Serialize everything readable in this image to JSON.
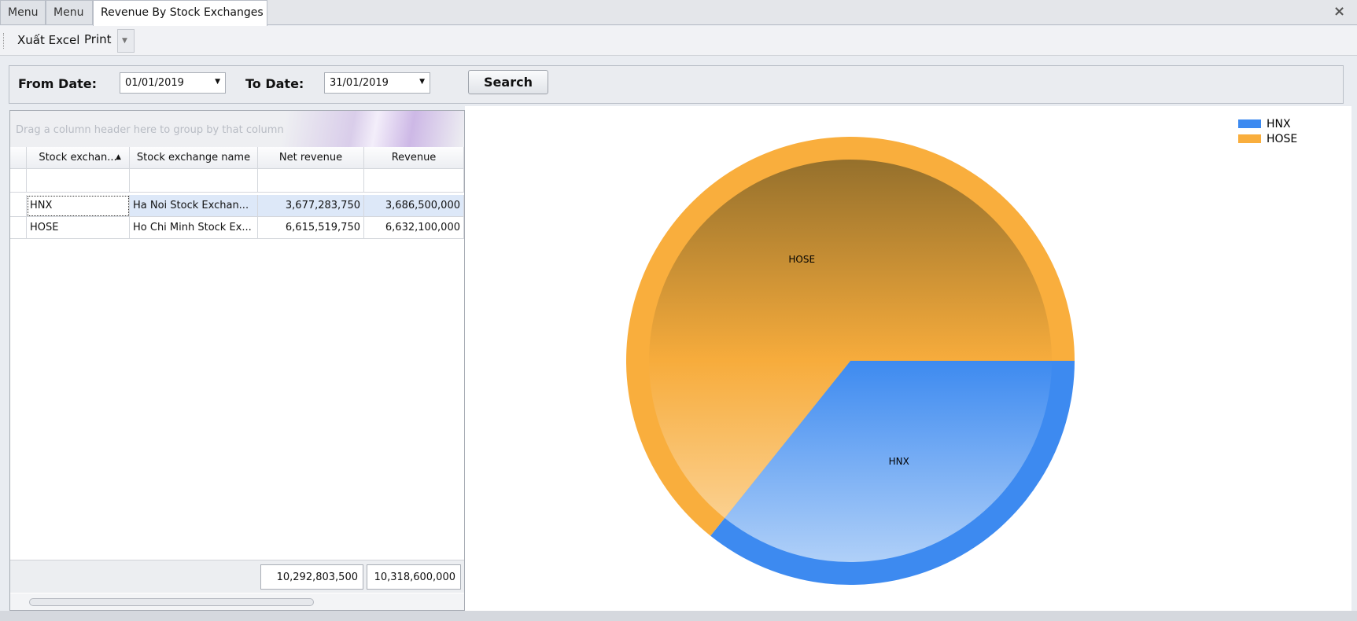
{
  "tabs": [
    "Menu",
    "Menu",
    "Revenue By Stock Exchanges"
  ],
  "toolbar": {
    "export": "Xuất Excel",
    "print": "Print"
  },
  "filter": {
    "from_label": "From Date:",
    "from_value": "01/01/2019",
    "to_label": "To Date:",
    "to_value": "31/01/2019",
    "search": "Search"
  },
  "grid": {
    "group_hint": "Drag a column header here to group by that column",
    "columns": [
      "Stock exchan...",
      "Stock exchange name",
      "Net revenue",
      "Revenue"
    ],
    "rows": [
      [
        "HNX",
        "Ha Noi Stock Exchan...",
        "3,677,283,750",
        "3,686,500,000"
      ],
      [
        "HOSE",
        "Ho Chi Minh Stock Ex...",
        "6,615,519,750",
        "6,632,100,000"
      ]
    ],
    "totals": [
      "10,292,803,500",
      "10,318,600,000"
    ]
  },
  "chart_data": {
    "type": "pie",
    "categories": [
      "HNX",
      "HOSE"
    ],
    "values": [
      3677283750,
      6615519750
    ],
    "colors": [
      "#3d8af0",
      "#f9ae3d"
    ]
  }
}
